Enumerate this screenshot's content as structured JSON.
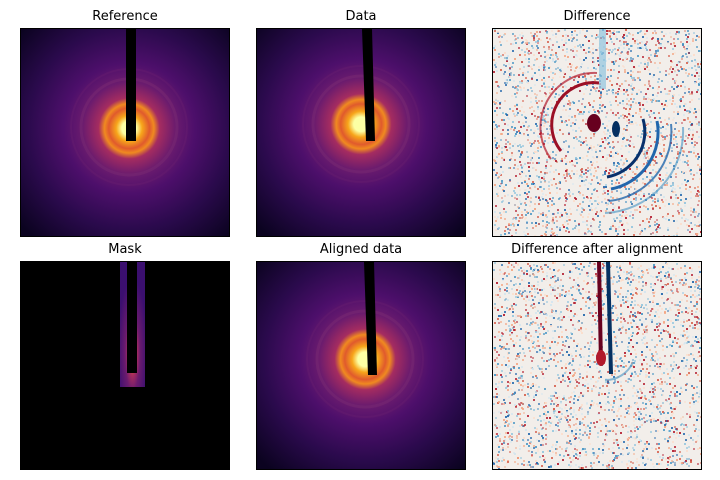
{
  "panels": [
    {
      "id": "reference",
      "title": "Reference",
      "kind": "diffraction"
    },
    {
      "id": "data",
      "title": "Data",
      "kind": "diffraction"
    },
    {
      "id": "difference",
      "title": "Difference",
      "kind": "difference"
    },
    {
      "id": "mask",
      "title": "Mask",
      "kind": "mask"
    },
    {
      "id": "aligned",
      "title": "Aligned data",
      "kind": "diffraction"
    },
    {
      "id": "difference-after",
      "title": "Difference after alignment",
      "kind": "difference-aligned"
    }
  ],
  "colors": {
    "inferno_dark": "#0b0320",
    "inferno_purple": "#4a0c6b",
    "inferno_orange": "#ed6925",
    "inferno_yellow": "#fcffa4",
    "rdbu_red": "#b2182b",
    "rdbu_blue": "#2166ac",
    "rdbu_white": "#f7f7f7",
    "beamstop": "#000000"
  }
}
